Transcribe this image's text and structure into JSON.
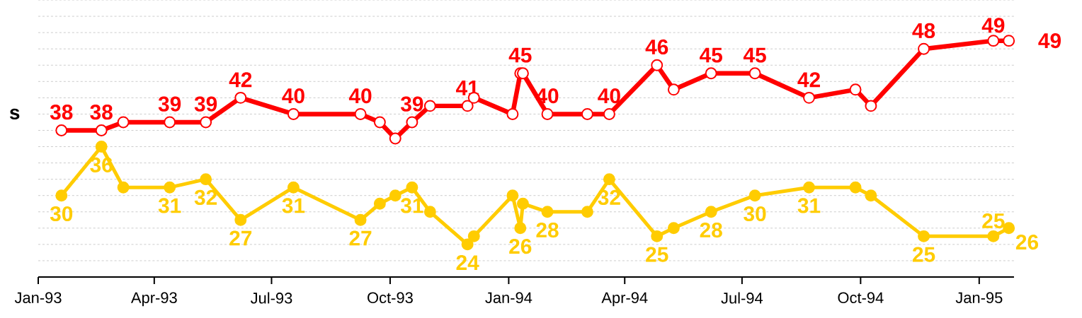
{
  "chart_data": {
    "type": "line",
    "ylabel": "s",
    "x": [
      "1993-01-19",
      "1993-02-19",
      "1993-03-08",
      "1993-04-13",
      "1993-05-11",
      "1993-06-07",
      "1993-07-18",
      "1993-09-08",
      "1993-09-23",
      "1993-10-05",
      "1993-10-18",
      "1993-11-01",
      "1993-11-30",
      "1993-12-05",
      "1994-01-04",
      "1994-01-10",
      "1994-01-12",
      "1994-01-31",
      "1994-03-03",
      "1994-03-20",
      "1994-04-26",
      "1994-05-09",
      "1994-06-07",
      "1994-07-11",
      "1994-08-22",
      "1994-09-27",
      "1994-10-09",
      "1994-11-19",
      "1995-01-12",
      "1995-01-24"
    ],
    "series": [
      {
        "color": "#ff0000",
        "values": [
          38,
          38,
          39,
          39,
          39,
          42,
          40,
          40,
          39,
          37,
          39,
          41,
          41,
          42,
          40,
          45,
          45,
          40,
          40,
          40,
          46,
          43,
          45,
          45,
          42,
          43,
          41,
          48,
          49,
          49
        ],
        "value_labels": [
          "38",
          "38",
          null,
          "39",
          "39",
          "42",
          "40",
          "40",
          null,
          null,
          "39",
          null,
          "41",
          null,
          null,
          "45",
          null,
          "40",
          null,
          "40",
          "46",
          null,
          "45",
          "45",
          "42",
          null,
          null,
          "48",
          "49",
          "49"
        ]
      },
      {
        "color": "#ffcc00",
        "values": [
          30,
          36,
          31,
          31,
          32,
          27,
          31,
          27,
          29,
          30,
          31,
          28,
          24,
          25,
          30,
          26,
          29,
          28,
          28,
          32,
          25,
          26,
          28,
          30,
          31,
          31,
          30,
          25,
          25,
          26
        ],
        "value_labels": [
          "30",
          "36",
          null,
          "31",
          "32",
          "27",
          "31",
          "27",
          null,
          null,
          "31",
          null,
          "24",
          null,
          null,
          "26",
          null,
          "28",
          null,
          "32",
          "25",
          null,
          "28",
          "30",
          "31",
          null,
          null,
          "25",
          "25",
          "26"
        ]
      }
    ],
    "xlim": [
      "1993-01-01",
      "1995-01-28"
    ],
    "xticks": [
      {
        "value": "1993-01-01",
        "label": "Jan-93"
      },
      {
        "value": "1993-04-01",
        "label": "Apr-93"
      },
      {
        "value": "1993-07-01",
        "label": "Jul-93"
      },
      {
        "value": "1993-10-01",
        "label": "Oct-93"
      },
      {
        "value": "1994-01-01",
        "label": "Jan-94"
      },
      {
        "value": "1994-04-01",
        "label": "Apr-94"
      },
      {
        "value": "1994-07-01",
        "label": "Jul-94"
      },
      {
        "value": "1994-10-01",
        "label": "Oct-94"
      },
      {
        "value": "1995-01-01",
        "label": "Jan-95"
      }
    ],
    "grid": "y",
    "tick_labels": "x",
    "marker": "circle",
    "line_style": "solid"
  }
}
